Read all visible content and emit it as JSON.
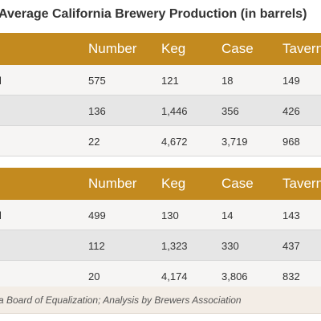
{
  "title": "Average California Brewery Production (in barrels)",
  "colors": {
    "header": "#c38a1f",
    "row_light": "#f6f5f4",
    "row_alt": "#e6e6e6",
    "source_bg": "#f3ede6"
  },
  "tables": [
    {
      "columns": [
        "Number",
        "Keg",
        "Case",
        "Tavern"
      ],
      "rows": [
        {
          "mark": "l",
          "cells": [
            "575",
            "121",
            "18",
            "149"
          ]
        },
        {
          "mark": "",
          "cells": [
            "136",
            "1,446",
            "356",
            "426"
          ]
        },
        {
          "mark": "",
          "cells": [
            "22",
            "4,672",
            "3,719",
            "968"
          ]
        }
      ]
    },
    {
      "columns": [
        "Number",
        "Keg",
        "Case",
        "Tavern"
      ],
      "rows": [
        {
          "mark": "l",
          "cells": [
            "499",
            "130",
            "14",
            "143"
          ]
        },
        {
          "mark": "",
          "cells": [
            "112",
            "1,323",
            "330",
            "437"
          ]
        },
        {
          "mark": "",
          "cells": [
            "20",
            "4,174",
            "3,806",
            "832"
          ]
        }
      ]
    }
  ],
  "source": "a Board of Equalization; Analysis by Brewers Association"
}
